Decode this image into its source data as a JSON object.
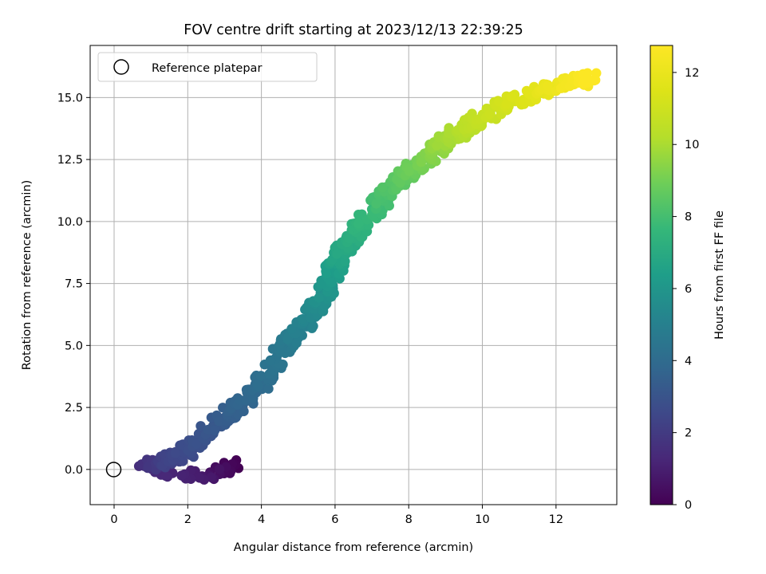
{
  "chart_data": {
    "type": "scatter",
    "title": "FOV centre drift starting at 2023/12/13 22:39:25",
    "xlabel": "Angular distance from reference (arcmin)",
    "ylabel": "Rotation from reference (arcmin)",
    "xlim": [
      -0.65,
      13.65
    ],
    "ylim": [
      -1.42,
      17.1
    ],
    "xticks": [
      0,
      2,
      4,
      6,
      8,
      10,
      12
    ],
    "yticks": [
      0.0,
      2.5,
      5.0,
      7.5,
      10.0,
      12.5,
      15.0
    ],
    "xtick_labels": [
      "0",
      "2",
      "4",
      "6",
      "8",
      "10",
      "12"
    ],
    "ytick_labels": [
      "0.0",
      "2.5",
      "5.0",
      "7.5",
      "10.0",
      "12.5",
      "15.0"
    ],
    "grid": true,
    "legend": {
      "placement": "upper-left",
      "entries": [
        "Reference platepar"
      ]
    },
    "reference_point": {
      "x": 0,
      "y": 0
    },
    "colorbar": {
      "label": "Hours from first FF file",
      "range": [
        0,
        12.75
      ],
      "ticks": [
        0,
        2,
        4,
        6,
        8,
        10,
        12
      ],
      "tick_labels": [
        "0",
        "2",
        "4",
        "6",
        "8",
        "10",
        "12"
      ],
      "colormap": "viridis"
    },
    "trend": [
      {
        "hours": 0.0,
        "x": 3.3,
        "y": 0.15
      },
      {
        "hours": 0.8,
        "x": 2.4,
        "y": -0.3
      },
      {
        "hours": 1.5,
        "x": 0.9,
        "y": 0.1
      },
      {
        "hours": 2.3,
        "x": 1.5,
        "y": 0.35
      },
      {
        "hours": 2.8,
        "x": 2.2,
        "y": 1.0
      },
      {
        "hours": 3.4,
        "x": 3.1,
        "y": 2.2
      },
      {
        "hours": 4.0,
        "x": 3.9,
        "y": 3.3
      },
      {
        "hours": 4.6,
        "x": 4.6,
        "y": 4.9
      },
      {
        "hours": 5.3,
        "x": 5.3,
        "y": 6.2
      },
      {
        "hours": 6.0,
        "x": 5.8,
        "y": 7.4
      },
      {
        "hours": 6.8,
        "x": 6.2,
        "y": 8.8
      },
      {
        "hours": 7.5,
        "x": 6.8,
        "y": 10.0
      },
      {
        "hours": 8.3,
        "x": 7.5,
        "y": 11.3
      },
      {
        "hours": 9.0,
        "x": 8.3,
        "y": 12.3
      },
      {
        "hours": 9.8,
        "x": 9.0,
        "y": 13.3
      },
      {
        "hours": 10.5,
        "x": 9.8,
        "y": 14.0
      },
      {
        "hours": 11.2,
        "x": 10.7,
        "y": 14.8
      },
      {
        "hours": 12.0,
        "x": 11.8,
        "y": 15.4
      },
      {
        "hours": 12.7,
        "x": 12.9,
        "y": 15.8
      }
    ],
    "spread": 0.25
  }
}
